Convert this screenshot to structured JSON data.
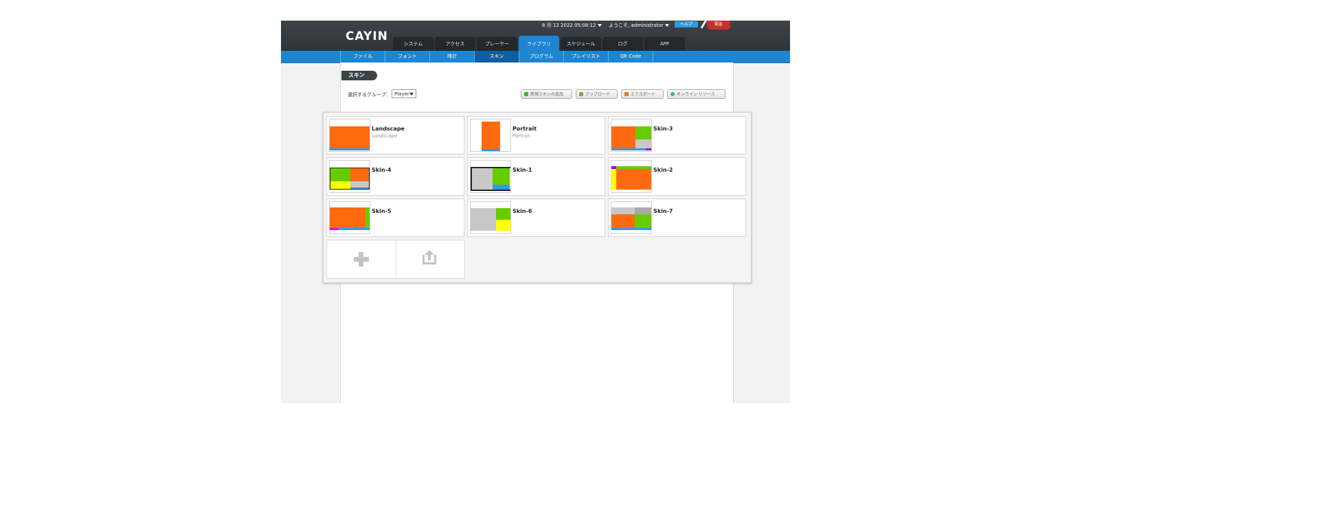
{
  "header": {
    "logo_text": "CAYIN",
    "datetime": "8 月 12 2022 05:08:12",
    "welcome": "ようこそ, administrator",
    "help_label": "ヘルプ",
    "emergency_label": "緊急"
  },
  "main_tabs": [
    {
      "label": "システム",
      "active": false
    },
    {
      "label": "アクセス",
      "active": false
    },
    {
      "label": "プレーヤー",
      "active": false
    },
    {
      "label": "ライブラリ",
      "active": true
    },
    {
      "label": "スケジュール",
      "active": false
    },
    {
      "label": "ログ",
      "active": false
    },
    {
      "label": "APP",
      "active": false
    }
  ],
  "sub_tabs": [
    {
      "label": "ファイル",
      "active": false
    },
    {
      "label": "フォント",
      "active": false
    },
    {
      "label": "時計",
      "active": false
    },
    {
      "label": "スキン",
      "active": true
    },
    {
      "label": "プログラム",
      "active": false
    },
    {
      "label": "プレイリスト",
      "active": false
    },
    {
      "label": "QR Code",
      "active": false
    }
  ],
  "page": {
    "title": "スキン",
    "group_label": "選択するグループ：",
    "group_value": "Player"
  },
  "toolbar": {
    "add_skin": "新規スキンの追加",
    "upload": "アップロード",
    "export": "エクスポート",
    "online_resources": "オンライン リソース"
  },
  "colors": {
    "orange": "#ff6a0f",
    "green": "#66cc00",
    "gray": "#c8c8c8",
    "blue": "#3399e6",
    "yellow": "#ffff00",
    "purple": "#9900cc",
    "accent_blue": "#1e86d0"
  },
  "skins": [
    {
      "name": "Landscape",
      "subtitle": "Landscape"
    },
    {
      "name": "Portrait",
      "subtitle": "Portrait"
    },
    {
      "name": "Skin-3",
      "subtitle": ""
    },
    {
      "name": "Skin-4",
      "subtitle": ""
    },
    {
      "name": "Skin-1",
      "subtitle": ""
    },
    {
      "name": "Skin-2",
      "subtitle": ""
    },
    {
      "name": "Skin-5",
      "subtitle": ""
    },
    {
      "name": "Skin-6",
      "subtitle": ""
    },
    {
      "name": "Skin-7",
      "subtitle": ""
    }
  ],
  "add_actions": {
    "add_icon": "plus-icon",
    "upload_icon": "upload-icon"
  }
}
